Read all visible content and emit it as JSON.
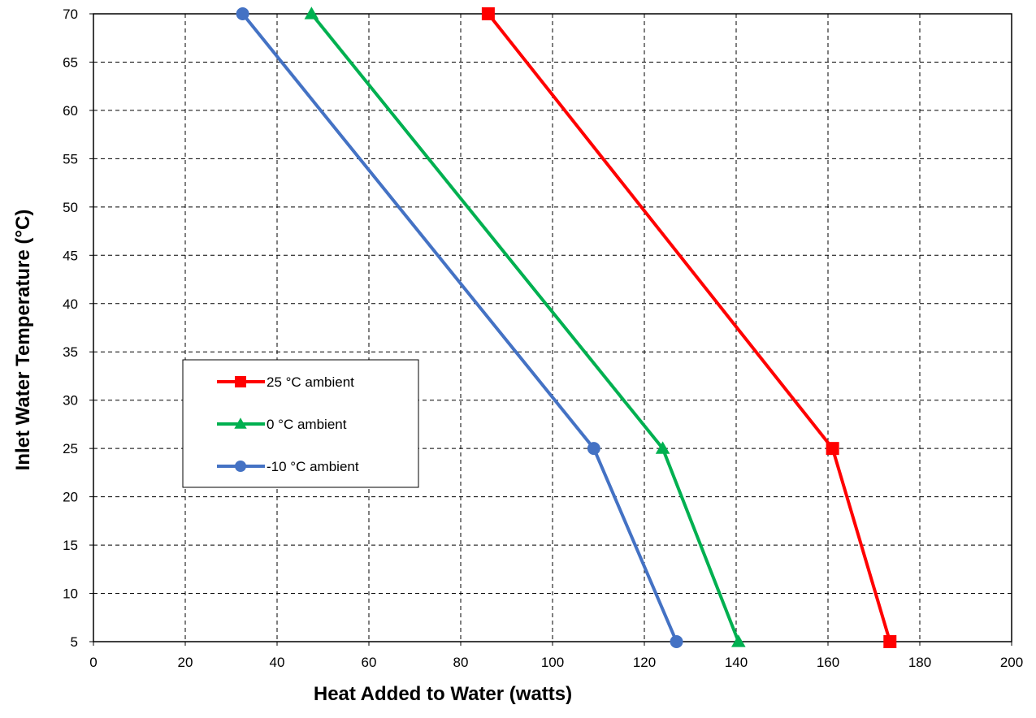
{
  "chart_data": {
    "type": "line",
    "xlabel": "Heat Added to Water (watts)",
    "ylabel": "Inlet Water Temperature (°C)",
    "xlim": [
      0,
      200
    ],
    "ylim": [
      5,
      70
    ],
    "xticks": [
      0,
      20,
      40,
      60,
      80,
      100,
      120,
      140,
      160,
      180,
      200
    ],
    "yticks": [
      5,
      10,
      15,
      20,
      25,
      30,
      35,
      40,
      45,
      50,
      55,
      60,
      65,
      70
    ],
    "grid": true,
    "legend_position": "center-left",
    "series": [
      {
        "name": "25 °C ambient",
        "color": "#ff0000",
        "marker": "square",
        "points": [
          {
            "x": 86,
            "y": 70
          },
          {
            "x": 161,
            "y": 25
          },
          {
            "x": 173.5,
            "y": 5
          }
        ]
      },
      {
        "name": "0 °C ambient",
        "color": "#00b050",
        "marker": "triangle",
        "points": [
          {
            "x": 47.5,
            "y": 70
          },
          {
            "x": 124,
            "y": 25
          },
          {
            "x": 140.5,
            "y": 5
          }
        ]
      },
      {
        "name": "-10 °C ambient",
        "color": "#4472c4",
        "marker": "circle",
        "points": [
          {
            "x": 32.5,
            "y": 70
          },
          {
            "x": 109,
            "y": 25
          },
          {
            "x": 127,
            "y": 5
          }
        ]
      }
    ]
  }
}
